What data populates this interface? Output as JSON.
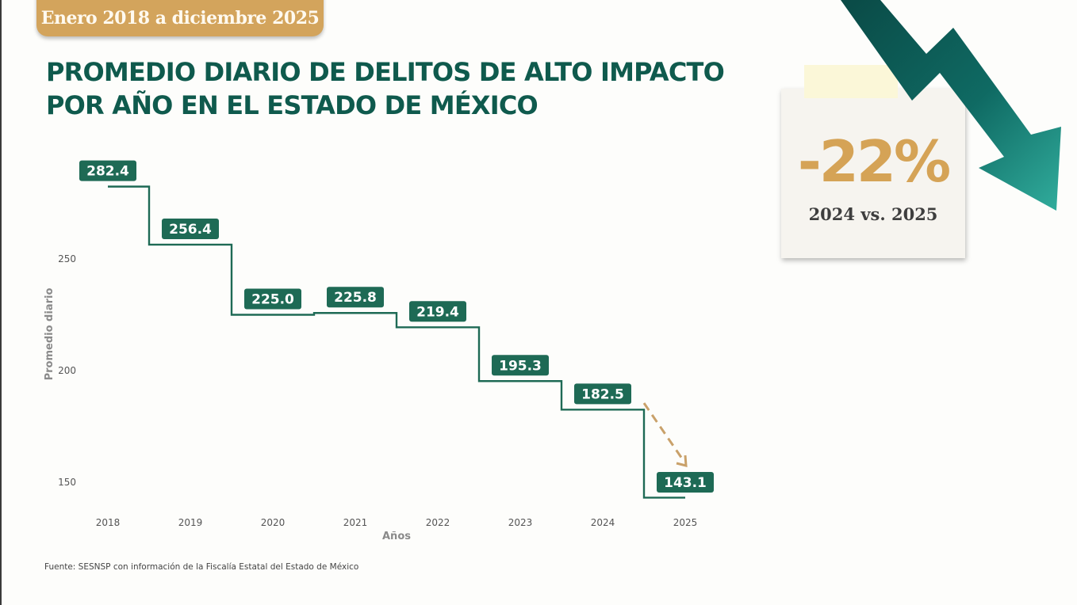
{
  "header": {
    "date_range": "Enero 2018 a diciembre 2025",
    "title_line1": "PROMEDIO DIARIO DE DELITOS DE ALTO IMPACTO",
    "title_line2": "POR AÑO EN EL ESTADO DE MÉXICO"
  },
  "callout": {
    "percent": "-22%",
    "comparison": "2024 vs. 2025",
    "icon": "down-trend-arrow-icon"
  },
  "source": "Fuente: SESNSP con información de la Fiscalía Estatal del Estado de México",
  "colors": {
    "primary": "#0f5a4d",
    "label_bg": "#1e6a55",
    "accent": "#d3a45c",
    "arrow_dark": "#0b4e4a",
    "arrow_light": "#2ea89a"
  },
  "chart_data": {
    "type": "line",
    "style": "step",
    "title": "PROMEDIO DIARIO DE DELITOS DE ALTO IMPACTO POR AÑO EN EL ESTADO DE MÉXICO",
    "xlabel": "Años",
    "ylabel": "Promedio diario",
    "categories": [
      "2018",
      "2019",
      "2020",
      "2021",
      "2022",
      "2023",
      "2024",
      "2025"
    ],
    "values": [
      282.4,
      256.4,
      225.0,
      225.8,
      219.4,
      195.3,
      182.5,
      143.1
    ],
    "value_labels": [
      "282.4",
      "256.4",
      "225.0",
      "225.8",
      "219.4",
      "195.3",
      "182.5",
      "143.1"
    ],
    "yticks": [
      150,
      200,
      250
    ],
    "ytick_labels": [
      "150",
      "200",
      "250"
    ],
    "ylim": [
      143,
      283
    ],
    "grid": false,
    "annotation": "dashed arrow from 2024 to 2025"
  }
}
